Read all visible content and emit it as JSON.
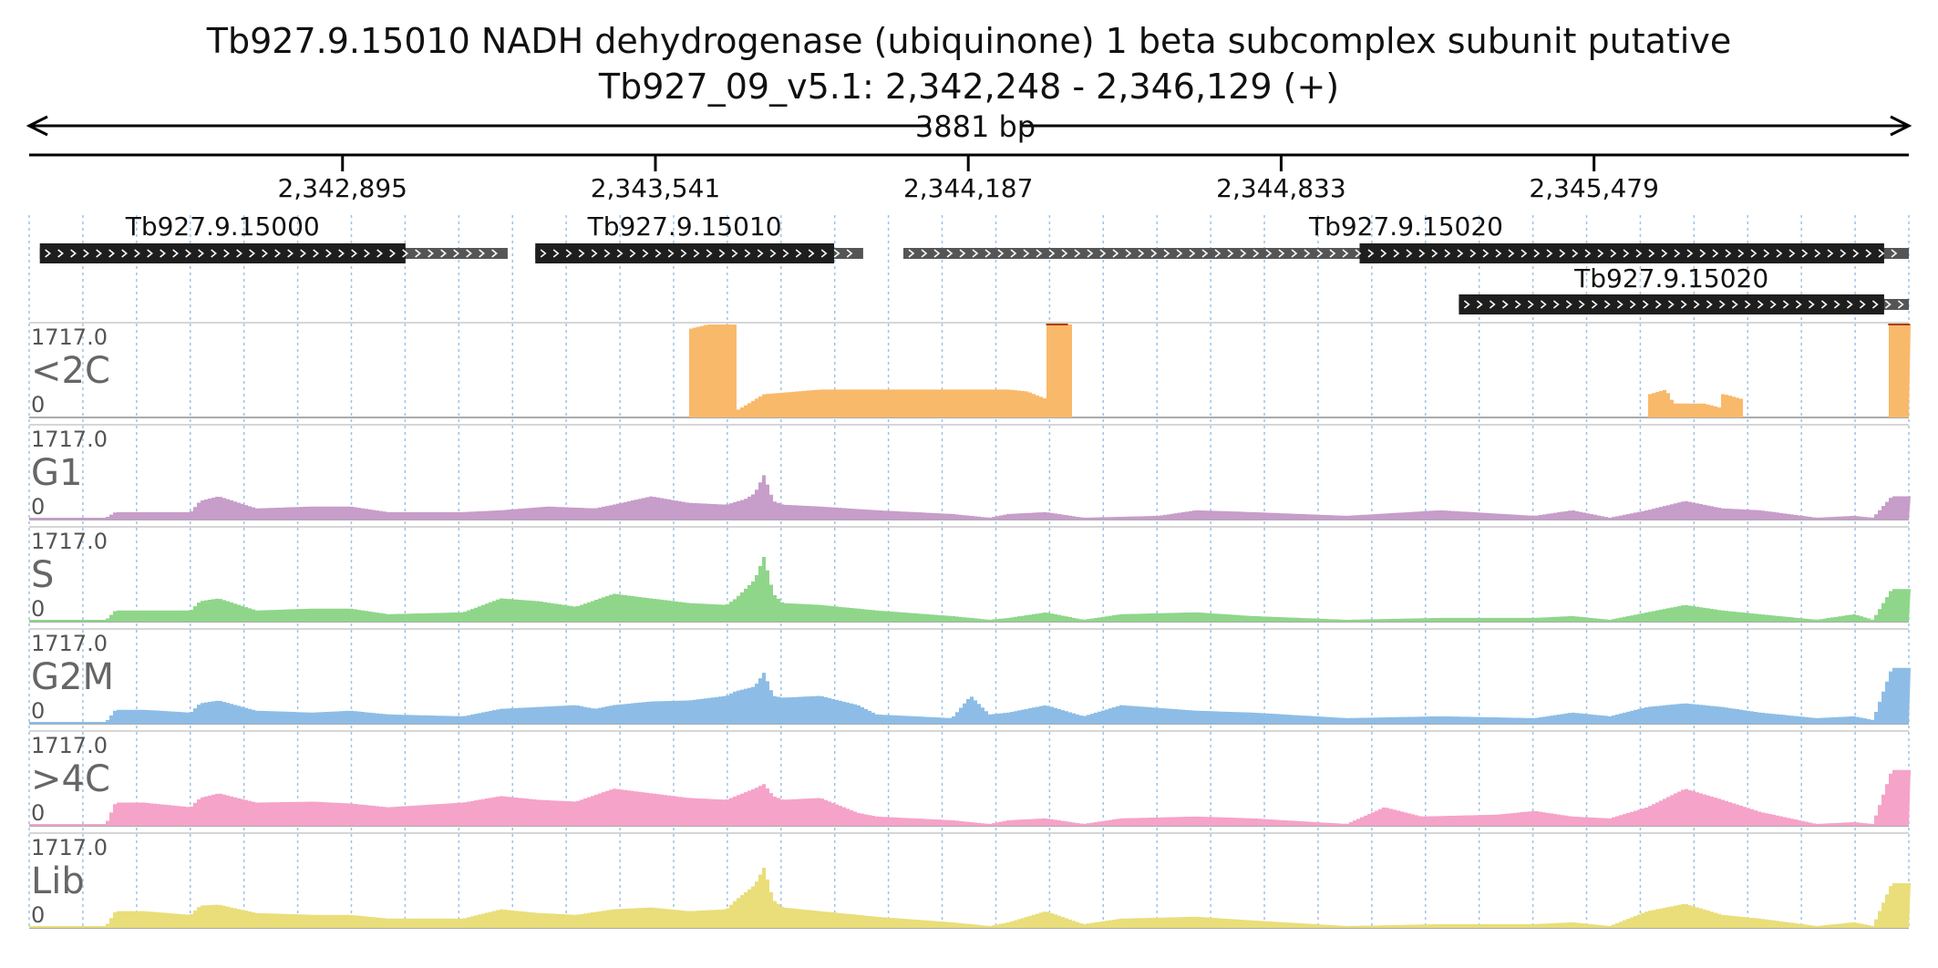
{
  "header": {
    "title": "Tb927.9.15010  NADH dehydrogenase (ubiquinone) 1 beta subcomplex subunit  putative",
    "subtitle": "Tb927_09_v5.1: 2,342,248 - 2,346,129 (+)",
    "span_label": "3881 bp"
  },
  "chart_data": {
    "type": "area",
    "region": {
      "chrom": "Tb927_09_v5.1",
      "start": 2342248,
      "end": 2346129,
      "strand": "+"
    },
    "xlim": [
      2342248,
      2346129
    ],
    "x_ticks": [
      {
        "pos": 2342895,
        "label": "2,342,895"
      },
      {
        "pos": 2343541,
        "label": "2,343,541"
      },
      {
        "pos": 2344187,
        "label": "2,344,187"
      },
      {
        "pos": 2344833,
        "label": "2,344,833"
      },
      {
        "pos": 2345479,
        "label": "2,345,479"
      }
    ],
    "genes": [
      {
        "id": "Tb927.9.15000",
        "label": "Tb927.9.15000",
        "start": 2342270,
        "end": 2343236,
        "cds_start": 2342270,
        "cds_end": 2343025,
        "row": 0
      },
      {
        "id": "Tb927.9.15010",
        "label": "Tb927.9.15010",
        "start": 2343293,
        "end": 2343970,
        "cds_start": 2343293,
        "cds_end": 2343910,
        "row": 0
      },
      {
        "id": "Tb927.9.15020-a",
        "label": "Tb927.9.15020",
        "start": 2344053,
        "end": 2346129,
        "cds_start": 2344995,
        "cds_end": 2346078,
        "row": 0
      },
      {
        "id": "Tb927.9.15020-b",
        "label": "Tb927.9.15020",
        "start": 2345200,
        "end": 2346129,
        "cds_start": 2345200,
        "cds_end": 2346078,
        "row": 1
      }
    ],
    "ylim": [
      0,
      1717.0
    ],
    "y_max_label": "1717.0",
    "y_min_label": "0",
    "tracks": [
      {
        "name": "<2C",
        "color": "#f9b96a",
        "profile": [
          [
            0.0,
            0
          ],
          [
            0.35,
            0
          ],
          [
            0.35,
            95
          ],
          [
            0.36,
            100
          ],
          [
            0.375,
            100
          ],
          [
            0.376,
            8
          ],
          [
            0.39,
            25
          ],
          [
            0.42,
            30
          ],
          [
            0.48,
            30
          ],
          [
            0.52,
            30
          ],
          [
            0.53,
            28
          ],
          [
            0.54,
            20
          ],
          [
            0.541,
            100
          ],
          [
            0.553,
            100
          ],
          [
            0.554,
            0
          ],
          [
            0.86,
            0
          ],
          [
            0.861,
            25
          ],
          [
            0.87,
            30
          ],
          [
            0.874,
            15
          ],
          [
            0.89,
            15
          ],
          [
            0.9,
            10
          ],
          [
            0.901,
            25
          ],
          [
            0.91,
            20
          ],
          [
            0.911,
            0
          ],
          [
            0.988,
            0
          ],
          [
            0.989,
            100
          ],
          [
            1.0,
            100
          ]
        ],
        "peak_marks": [
          0.541,
          0.989
        ]
      },
      {
        "name": "G1",
        "color": "#c79dca",
        "profile": [
          [
            0.0,
            2
          ],
          [
            0.04,
            2
          ],
          [
            0.045,
            8
          ],
          [
            0.06,
            8
          ],
          [
            0.085,
            8
          ],
          [
            0.09,
            20
          ],
          [
            0.1,
            25
          ],
          [
            0.12,
            12
          ],
          [
            0.15,
            14
          ],
          [
            0.17,
            14
          ],
          [
            0.19,
            8
          ],
          [
            0.23,
            8
          ],
          [
            0.25,
            10
          ],
          [
            0.275,
            14
          ],
          [
            0.3,
            12
          ],
          [
            0.31,
            16
          ],
          [
            0.33,
            25
          ],
          [
            0.35,
            18
          ],
          [
            0.37,
            16
          ],
          [
            0.38,
            22
          ],
          [
            0.385,
            28
          ],
          [
            0.39,
            48
          ],
          [
            0.395,
            20
          ],
          [
            0.4,
            16
          ],
          [
            0.42,
            14
          ],
          [
            0.45,
            10
          ],
          [
            0.49,
            6
          ],
          [
            0.5,
            4
          ],
          [
            0.51,
            2
          ],
          [
            0.52,
            6
          ],
          [
            0.54,
            8
          ],
          [
            0.56,
            2
          ],
          [
            0.6,
            4
          ],
          [
            0.62,
            10
          ],
          [
            0.65,
            8
          ],
          [
            0.7,
            4
          ],
          [
            0.75,
            10
          ],
          [
            0.8,
            4
          ],
          [
            0.82,
            10
          ],
          [
            0.84,
            2
          ],
          [
            0.86,
            10
          ],
          [
            0.88,
            20
          ],
          [
            0.9,
            12
          ],
          [
            0.92,
            10
          ],
          [
            0.95,
            2
          ],
          [
            0.97,
            4
          ],
          [
            0.98,
            2
          ],
          [
            0.99,
            25
          ],
          [
            1.0,
            25
          ]
        ]
      },
      {
        "name": "S",
        "color": "#8fd68a",
        "profile": [
          [
            0.0,
            2
          ],
          [
            0.04,
            2
          ],
          [
            0.045,
            12
          ],
          [
            0.06,
            12
          ],
          [
            0.085,
            12
          ],
          [
            0.09,
            22
          ],
          [
            0.1,
            25
          ],
          [
            0.12,
            12
          ],
          [
            0.15,
            14
          ],
          [
            0.17,
            14
          ],
          [
            0.19,
            8
          ],
          [
            0.23,
            10
          ],
          [
            0.25,
            25
          ],
          [
            0.27,
            22
          ],
          [
            0.29,
            16
          ],
          [
            0.31,
            30
          ],
          [
            0.33,
            25
          ],
          [
            0.35,
            20
          ],
          [
            0.37,
            18
          ],
          [
            0.375,
            25
          ],
          [
            0.385,
            45
          ],
          [
            0.39,
            70
          ],
          [
            0.395,
            30
          ],
          [
            0.4,
            20
          ],
          [
            0.42,
            18
          ],
          [
            0.45,
            12
          ],
          [
            0.49,
            6
          ],
          [
            0.5,
            4
          ],
          [
            0.51,
            2
          ],
          [
            0.52,
            4
          ],
          [
            0.54,
            10
          ],
          [
            0.56,
            2
          ],
          [
            0.58,
            8
          ],
          [
            0.62,
            10
          ],
          [
            0.65,
            6
          ],
          [
            0.7,
            2
          ],
          [
            0.75,
            4
          ],
          [
            0.8,
            4
          ],
          [
            0.82,
            6
          ],
          [
            0.84,
            2
          ],
          [
            0.86,
            10
          ],
          [
            0.88,
            18
          ],
          [
            0.9,
            12
          ],
          [
            0.92,
            8
          ],
          [
            0.95,
            2
          ],
          [
            0.97,
            8
          ],
          [
            0.98,
            2
          ],
          [
            0.99,
            35
          ],
          [
            1.0,
            35
          ]
        ]
      },
      {
        "name": "G2M",
        "color": "#8dbde6",
        "profile": [
          [
            0.0,
            2
          ],
          [
            0.04,
            2
          ],
          [
            0.045,
            15
          ],
          [
            0.06,
            15
          ],
          [
            0.085,
            12
          ],
          [
            0.09,
            22
          ],
          [
            0.1,
            25
          ],
          [
            0.12,
            14
          ],
          [
            0.15,
            12
          ],
          [
            0.17,
            14
          ],
          [
            0.19,
            10
          ],
          [
            0.23,
            8
          ],
          [
            0.25,
            16
          ],
          [
            0.27,
            18
          ],
          [
            0.29,
            20
          ],
          [
            0.3,
            16
          ],
          [
            0.31,
            20
          ],
          [
            0.33,
            24
          ],
          [
            0.35,
            25
          ],
          [
            0.37,
            30
          ],
          [
            0.375,
            35
          ],
          [
            0.385,
            40
          ],
          [
            0.39,
            55
          ],
          [
            0.395,
            30
          ],
          [
            0.4,
            28
          ],
          [
            0.42,
            30
          ],
          [
            0.44,
            20
          ],
          [
            0.45,
            10
          ],
          [
            0.49,
            6
          ],
          [
            0.5,
            30
          ],
          [
            0.51,
            10
          ],
          [
            0.52,
            12
          ],
          [
            0.54,
            20
          ],
          [
            0.56,
            8
          ],
          [
            0.58,
            20
          ],
          [
            0.62,
            14
          ],
          [
            0.65,
            12
          ],
          [
            0.7,
            6
          ],
          [
            0.75,
            8
          ],
          [
            0.8,
            6
          ],
          [
            0.82,
            12
          ],
          [
            0.84,
            8
          ],
          [
            0.86,
            18
          ],
          [
            0.88,
            22
          ],
          [
            0.9,
            18
          ],
          [
            0.92,
            12
          ],
          [
            0.95,
            6
          ],
          [
            0.97,
            8
          ],
          [
            0.98,
            4
          ],
          [
            0.99,
            60
          ],
          [
            1.0,
            60
          ]
        ]
      },
      {
        "name": ">4C",
        "color": "#f5a3c9",
        "profile": [
          [
            0.0,
            2
          ],
          [
            0.04,
            2
          ],
          [
            0.045,
            25
          ],
          [
            0.06,
            25
          ],
          [
            0.085,
            20
          ],
          [
            0.09,
            30
          ],
          [
            0.1,
            35
          ],
          [
            0.12,
            25
          ],
          [
            0.15,
            26
          ],
          [
            0.17,
            24
          ],
          [
            0.19,
            20
          ],
          [
            0.23,
            25
          ],
          [
            0.25,
            32
          ],
          [
            0.27,
            28
          ],
          [
            0.29,
            26
          ],
          [
            0.31,
            40
          ],
          [
            0.33,
            35
          ],
          [
            0.35,
            30
          ],
          [
            0.37,
            28
          ],
          [
            0.375,
            32
          ],
          [
            0.385,
            40
          ],
          [
            0.39,
            45
          ],
          [
            0.395,
            32
          ],
          [
            0.4,
            28
          ],
          [
            0.42,
            30
          ],
          [
            0.44,
            14
          ],
          [
            0.45,
            10
          ],
          [
            0.49,
            6
          ],
          [
            0.5,
            4
          ],
          [
            0.51,
            2
          ],
          [
            0.52,
            6
          ],
          [
            0.54,
            8
          ],
          [
            0.56,
            2
          ],
          [
            0.58,
            8
          ],
          [
            0.62,
            10
          ],
          [
            0.65,
            8
          ],
          [
            0.7,
            2
          ],
          [
            0.72,
            20
          ],
          [
            0.74,
            10
          ],
          [
            0.78,
            12
          ],
          [
            0.8,
            16
          ],
          [
            0.82,
            10
          ],
          [
            0.84,
            8
          ],
          [
            0.86,
            20
          ],
          [
            0.88,
            40
          ],
          [
            0.9,
            28
          ],
          [
            0.92,
            15
          ],
          [
            0.95,
            2
          ],
          [
            0.97,
            4
          ],
          [
            0.98,
            2
          ],
          [
            0.99,
            60
          ],
          [
            1.0,
            60
          ]
        ]
      },
      {
        "name": "Lib",
        "color": "#e9de7a",
        "profile": [
          [
            0.0,
            2
          ],
          [
            0.04,
            2
          ],
          [
            0.045,
            18
          ],
          [
            0.06,
            18
          ],
          [
            0.085,
            14
          ],
          [
            0.09,
            24
          ],
          [
            0.1,
            25
          ],
          [
            0.12,
            16
          ],
          [
            0.15,
            14
          ],
          [
            0.17,
            14
          ],
          [
            0.19,
            10
          ],
          [
            0.23,
            10
          ],
          [
            0.25,
            20
          ],
          [
            0.27,
            16
          ],
          [
            0.29,
            14
          ],
          [
            0.31,
            20
          ],
          [
            0.33,
            22
          ],
          [
            0.35,
            18
          ],
          [
            0.37,
            20
          ],
          [
            0.375,
            30
          ],
          [
            0.385,
            46
          ],
          [
            0.39,
            65
          ],
          [
            0.395,
            30
          ],
          [
            0.4,
            22
          ],
          [
            0.42,
            18
          ],
          [
            0.45,
            12
          ],
          [
            0.49,
            6
          ],
          [
            0.5,
            4
          ],
          [
            0.51,
            2
          ],
          [
            0.52,
            6
          ],
          [
            0.54,
            18
          ],
          [
            0.56,
            4
          ],
          [
            0.58,
            10
          ],
          [
            0.62,
            12
          ],
          [
            0.65,
            8
          ],
          [
            0.7,
            2
          ],
          [
            0.75,
            4
          ],
          [
            0.8,
            4
          ],
          [
            0.82,
            6
          ],
          [
            0.84,
            2
          ],
          [
            0.86,
            18
          ],
          [
            0.88,
            26
          ],
          [
            0.9,
            14
          ],
          [
            0.92,
            10
          ],
          [
            0.95,
            2
          ],
          [
            0.97,
            6
          ],
          [
            0.98,
            2
          ],
          [
            0.99,
            48
          ],
          [
            1.0,
            48
          ]
        ]
      }
    ]
  }
}
